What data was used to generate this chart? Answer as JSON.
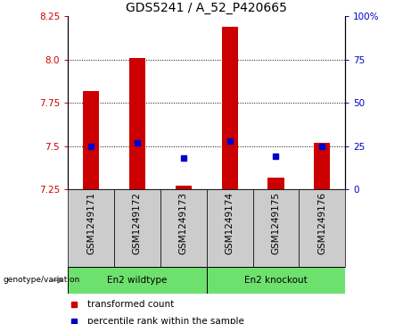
{
  "title": "GDS5241 / A_52_P420665",
  "samples": [
    "GSM1249171",
    "GSM1249172",
    "GSM1249173",
    "GSM1249174",
    "GSM1249175",
    "GSM1249176"
  ],
  "red_values": [
    7.82,
    8.01,
    7.27,
    8.19,
    7.32,
    7.52
  ],
  "blue_values": [
    7.5,
    7.52,
    7.43,
    7.53,
    7.44,
    7.5
  ],
  "ymin": 7.25,
  "ymax": 8.25,
  "yticks": [
    7.25,
    7.5,
    7.75,
    8.0,
    8.25
  ],
  "y2ticks": [
    0,
    25,
    50,
    75,
    100
  ],
  "grid_lines": [
    7.5,
    7.75,
    8.0
  ],
  "group1_label": "En2 wildtype",
  "group2_label": "En2 knockout",
  "group_color": "#6EE06E",
  "bar_color": "#CC0000",
  "point_color": "#0000CC",
  "bar_width": 0.35,
  "plot_bg": "#ffffff",
  "sample_box_bg": "#cccccc",
  "legend_red": "transformed count",
  "legend_blue": "percentile rank within the sample",
  "genotype_label": "genotype/variation",
  "left_label_color": "#CC0000",
  "right_label_color": "#0000CC",
  "title_fontsize": 10,
  "tick_fontsize": 7.5,
  "label_fontsize": 7.5
}
